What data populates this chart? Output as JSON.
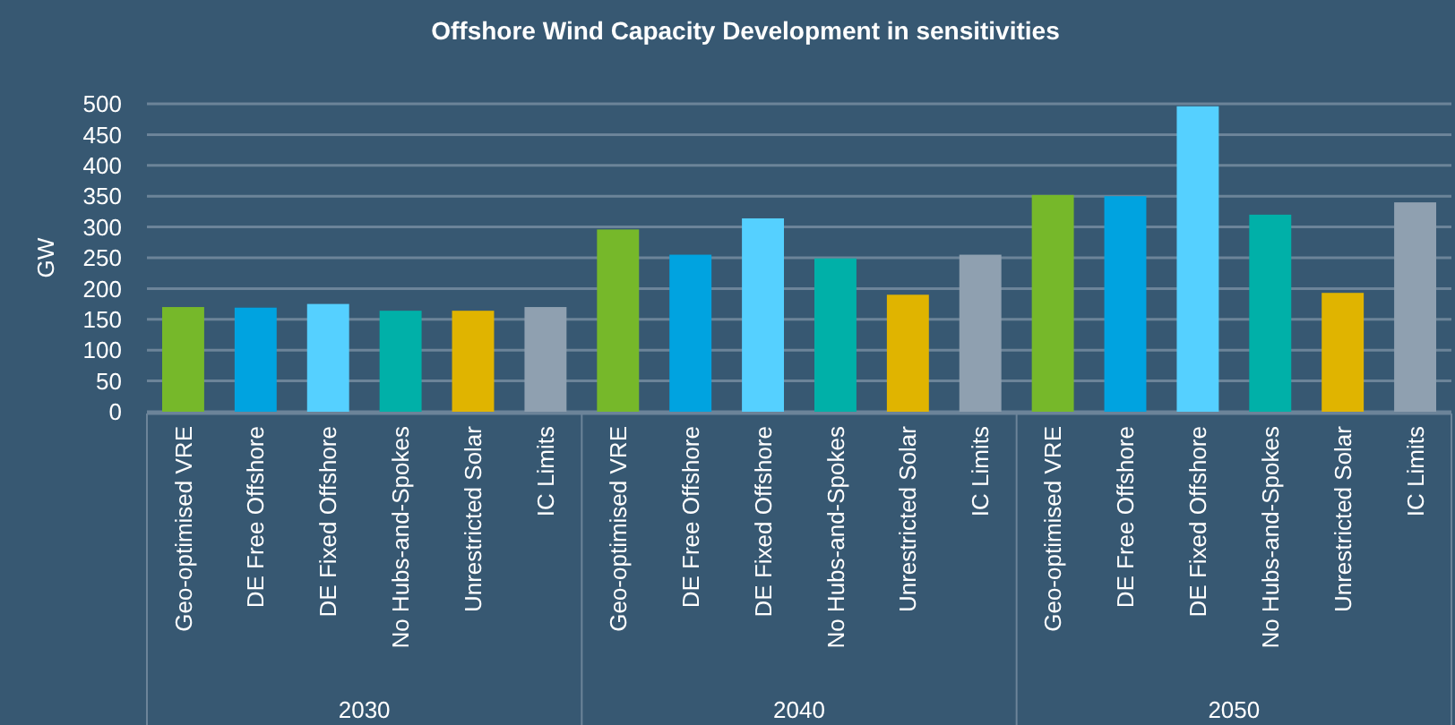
{
  "chart_data": {
    "type": "bar",
    "title": "Offshore Wind Capacity Development in sensitivities",
    "ylabel": "GW",
    "categories": [
      "Geo-optimised VRE",
      "DE Free Offshore",
      "DE Fixed Offshore",
      "No Hubs-and-Spokes",
      "Unrestricted Solar",
      "IC Limits",
      "Geo-optimised VRE",
      "DE Free Offshore",
      "DE Fixed Offshore",
      "No Hubs-and-Spokes",
      "Unrestricted Solar",
      "IC Limits",
      "Geo-optimised VRE",
      "DE Free Offshore",
      "DE Fixed Offshore",
      "No Hubs-and-Spokes",
      "Unrestricted Solar",
      "IC Limits"
    ],
    "values": [
      170,
      169,
      175,
      164,
      164,
      170,
      296,
      255,
      314,
      249,
      190,
      255,
      352,
      350,
      496,
      320,
      193,
      340
    ],
    "colors": [
      "#76b82a",
      "#00a3e0",
      "#55d0ff",
      "#00b0a8",
      "#e0b400",
      "#8fa0b0",
      "#76b82a",
      "#00a3e0",
      "#55d0ff",
      "#00b0a8",
      "#e0b400",
      "#8fa0b0",
      "#76b82a",
      "#00a3e0",
      "#55d0ff",
      "#00b0a8",
      "#e0b400",
      "#8fa0b0"
    ],
    "annotations": [
      "2030",
      "2040",
      "2050"
    ],
    "ylim": [
      0,
      500
    ],
    "yticks": [
      0,
      50,
      100,
      150,
      200,
      250,
      300,
      350,
      400,
      450,
      500
    ],
    "grid": "y"
  }
}
